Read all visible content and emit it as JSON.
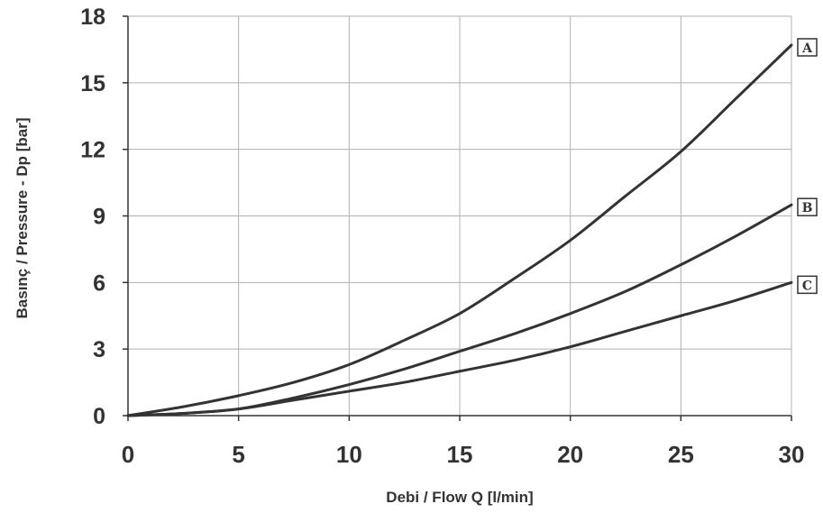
{
  "chart_data": {
    "type": "line",
    "title": "",
    "xlabel": "Debi / Flow  Q [l/min]",
    "ylabel": "Basınç / Pressure - Dp [bar]",
    "xlim": [
      0,
      30
    ],
    "ylim": [
      0,
      18
    ],
    "x_ticks": [
      0,
      5,
      10,
      15,
      20,
      25,
      30
    ],
    "y_ticks": [
      0,
      3,
      6,
      9,
      12,
      15,
      18
    ],
    "x_tick_labels": [
      "0",
      "5",
      "10",
      "15",
      "20",
      "25",
      "30"
    ],
    "y_tick_labels": [
      "0",
      "3",
      "6",
      "9",
      "12",
      "15",
      "18"
    ],
    "grid": true,
    "legend": "inline-right",
    "line_color": "#333333",
    "grid_color": "#b0b0b0",
    "x": [
      0,
      2.5,
      5,
      7.5,
      10,
      12.5,
      15,
      17.5,
      20,
      22.5,
      25,
      27.5,
      30
    ],
    "series": [
      {
        "name": "A",
        "values": [
          0,
          0.4,
          0.9,
          1.5,
          2.3,
          3.4,
          4.6,
          6.2,
          7.9,
          9.9,
          11.9,
          14.3,
          16.7
        ]
      },
      {
        "name": "B",
        "values": [
          0,
          0.1,
          0.3,
          0.8,
          1.4,
          2.1,
          2.9,
          3.7,
          4.6,
          5.6,
          6.8,
          8.1,
          9.5
        ]
      },
      {
        "name": "C",
        "values": [
          0,
          0.1,
          0.3,
          0.7,
          1.1,
          1.5,
          2.0,
          2.5,
          3.1,
          3.8,
          4.5,
          5.2,
          6.0
        ]
      }
    ]
  }
}
